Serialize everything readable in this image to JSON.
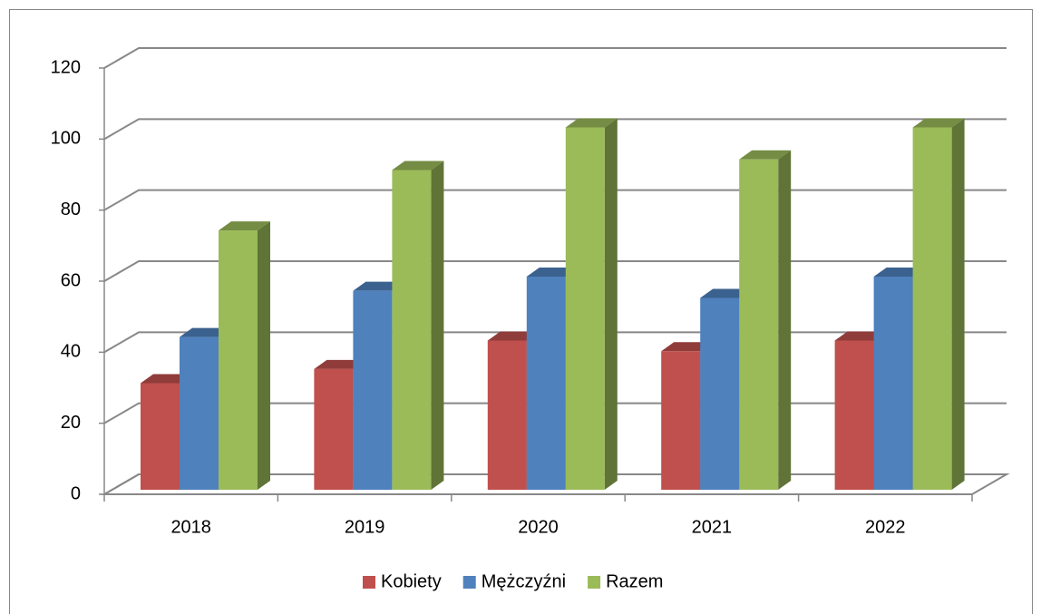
{
  "chart_data": {
    "type": "bar3d",
    "categories": [
      "2018",
      "2019",
      "2020",
      "2021",
      "2022"
    ],
    "series": [
      {
        "name": "Kobiety",
        "color": "#c0504d",
        "values": [
          30,
          34,
          42,
          39,
          42
        ]
      },
      {
        "name": "Mężczyźni",
        "color": "#4f81bd",
        "values": [
          43,
          56,
          60,
          54,
          60
        ]
      },
      {
        "name": "Razem",
        "color": "#9bbb59",
        "values": [
          73,
          90,
          102,
          93,
          102
        ]
      }
    ],
    "ylim": [
      0,
      120
    ],
    "yticks": [
      0,
      20,
      40,
      60,
      80,
      100,
      120
    ],
    "grid": true,
    "legend": "bottom"
  }
}
